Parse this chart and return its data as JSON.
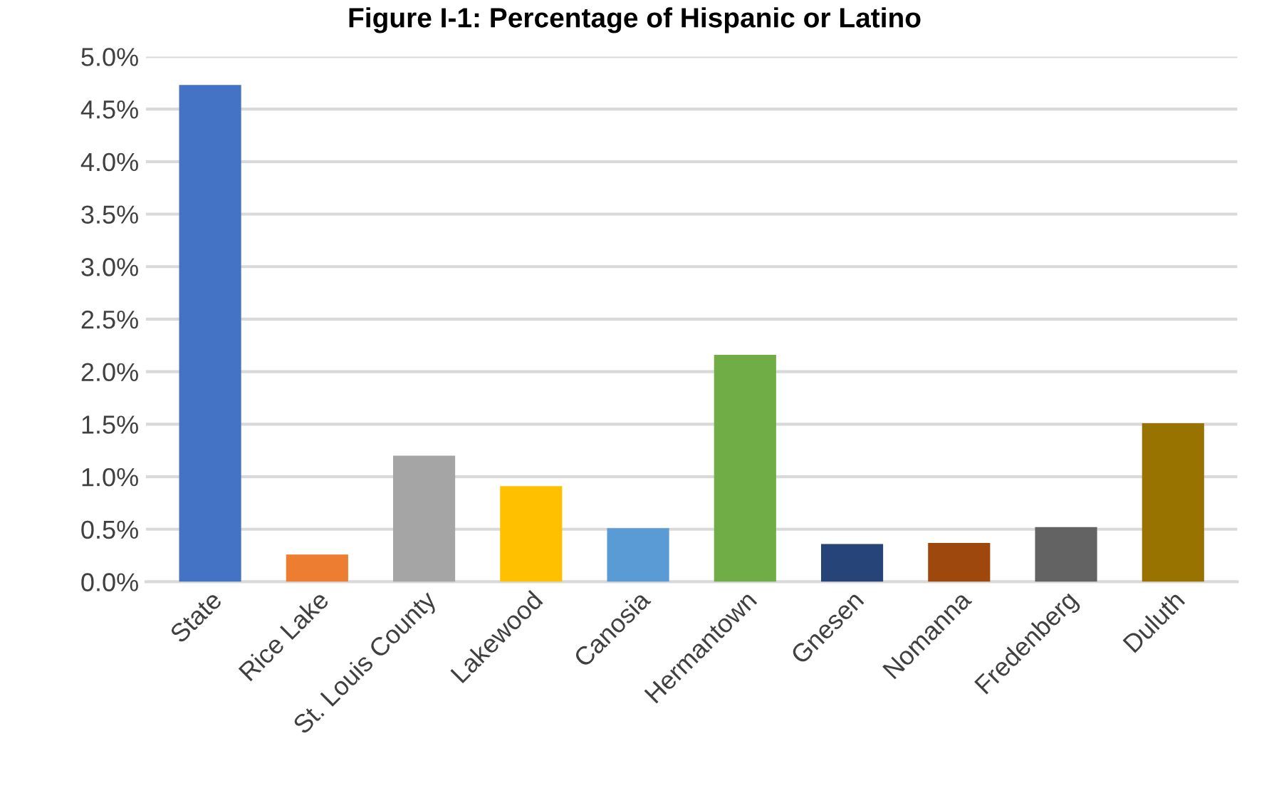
{
  "chart_data": {
    "type": "bar",
    "title": "Figure I-1: Percentage of Hispanic or Latino",
    "categories": [
      "State",
      "Rice Lake",
      "St. Louis County",
      "Lakewood",
      "Canosia",
      "Hermantown",
      "Gnesen",
      "Nomanna",
      "Fredenberg",
      "Duluth"
    ],
    "values": [
      4.73,
      0.26,
      1.2,
      0.91,
      0.51,
      2.16,
      0.36,
      0.37,
      0.52,
      1.51
    ],
    "colors": [
      "#4472c4",
      "#ed7d31",
      "#a5a5a5",
      "#ffc000",
      "#5b9bd5",
      "#70ad47",
      "#264478",
      "#9e480e",
      "#636363",
      "#997300"
    ],
    "ylim": [
      0,
      5
    ],
    "yticks": [
      {
        "value": 0,
        "label": "0.0%"
      },
      {
        "value": 0.5,
        "label": "0.5%"
      },
      {
        "value": 1,
        "label": "1.0%"
      },
      {
        "value": 1.5,
        "label": "1.5%"
      },
      {
        "value": 2,
        "label": "2.0%"
      },
      {
        "value": 2.5,
        "label": "2.5%"
      },
      {
        "value": 3,
        "label": "3.0%"
      },
      {
        "value": 3.5,
        "label": "3.5%"
      },
      {
        "value": 4,
        "label": "4.0%"
      },
      {
        "value": 4.5,
        "label": "4.5%"
      },
      {
        "value": 5,
        "label": "5.0%"
      }
    ],
    "grid": "y"
  }
}
